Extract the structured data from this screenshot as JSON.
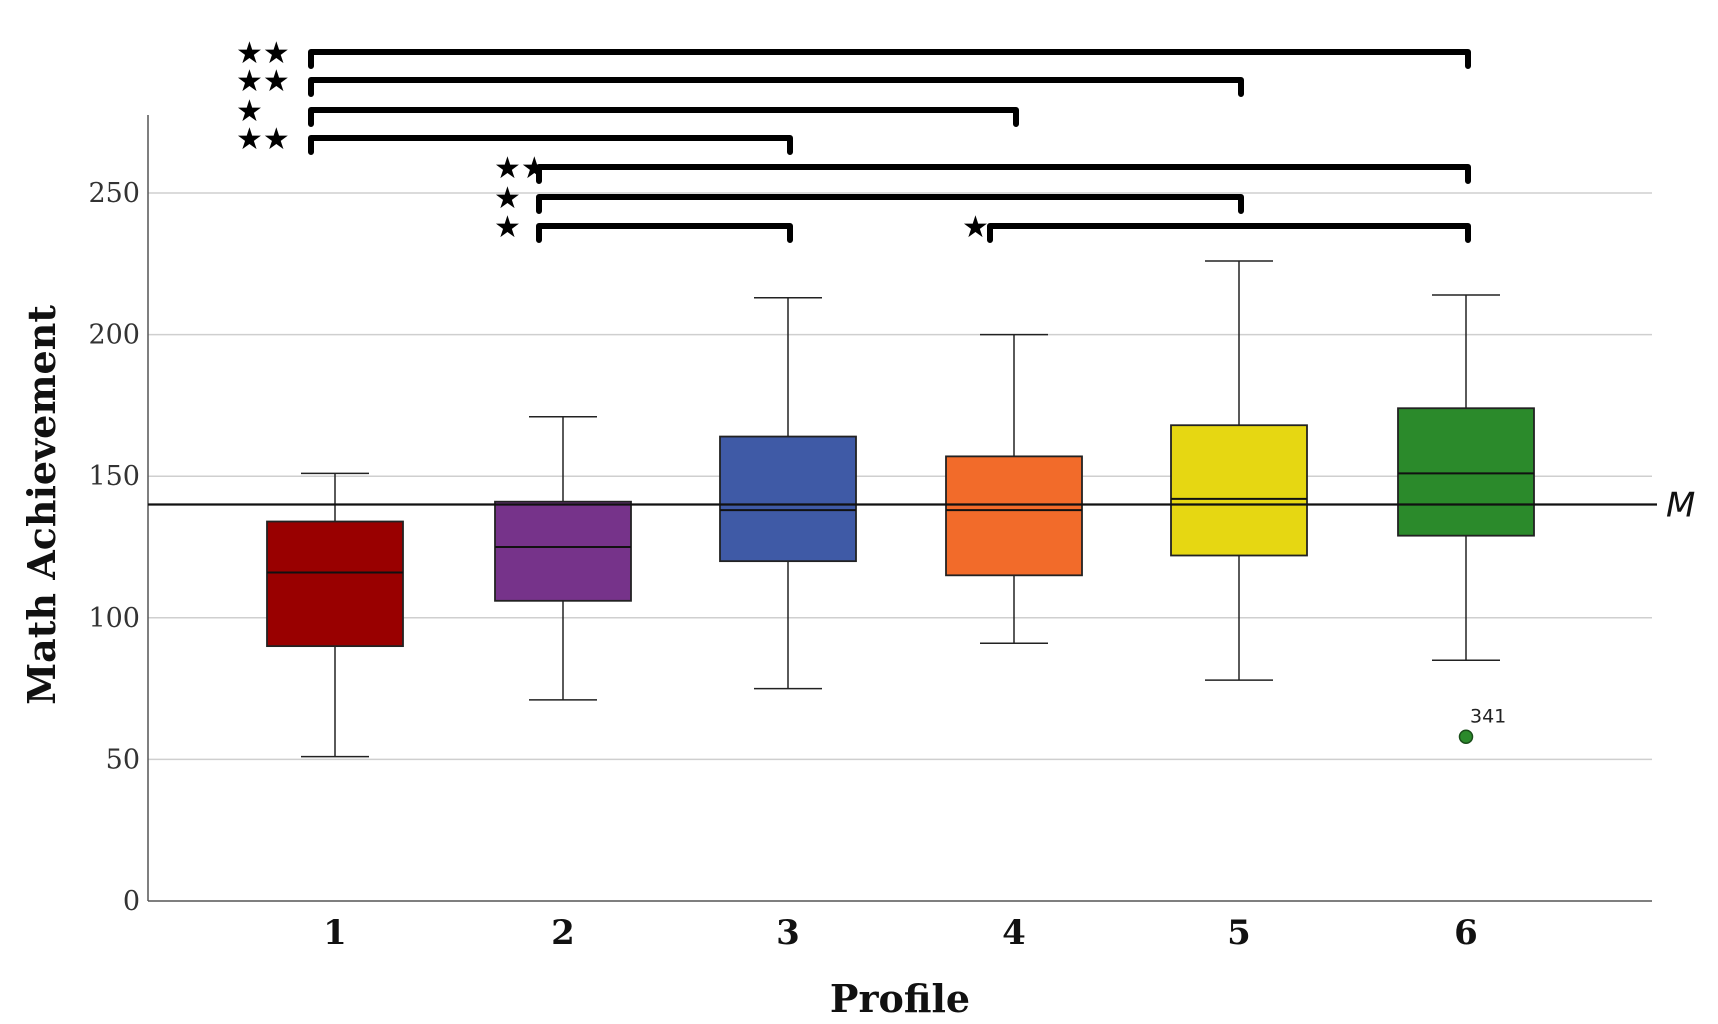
{
  "chart_data": {
    "type": "box",
    "title": "",
    "xlabel": "Profile",
    "ylabel": "Math Achievement",
    "ylim": [
      0,
      275
    ],
    "yticks": [
      0,
      50,
      100,
      150,
      200,
      250
    ],
    "ytick_labels": [
      "0",
      "50",
      "100",
      "150",
      "200",
      "250"
    ],
    "grid": true,
    "categories": [
      "1",
      "2",
      "3",
      "4",
      "5",
      "6"
    ],
    "boxes": [
      {
        "category": "1",
        "min": 51,
        "q1": 90,
        "median": 116,
        "q3": 134,
        "max": 151,
        "color": "#990000"
      },
      {
        "category": "2",
        "min": 71,
        "q1": 106,
        "median": 125,
        "q3": 141,
        "max": 171,
        "color": "#76338a"
      },
      {
        "category": "3",
        "min": 75,
        "q1": 120,
        "median": 138,
        "q3": 164,
        "max": 213,
        "color": "#3f5aa6"
      },
      {
        "category": "4",
        "min": 91,
        "q1": 115,
        "median": 138,
        "q3": 157,
        "max": 200,
        "color": "#f26b2a"
      },
      {
        "category": "5",
        "min": 78,
        "q1": 122,
        "median": 142,
        "q3": 168,
        "max": 226,
        "color": "#e6d712"
      },
      {
        "category": "6",
        "min": 85,
        "q1": 129,
        "median": 151,
        "q3": 174,
        "max": 214,
        "color": "#2b8a2b"
      }
    ],
    "outliers": [
      {
        "category": "6",
        "value": 58,
        "label": "341",
        "color": "#2b8a2b"
      }
    ],
    "reference_line": {
      "value": 140,
      "label": "M"
    },
    "significance": [
      {
        "from": "1",
        "to": "6",
        "stars": "★★"
      },
      {
        "from": "1",
        "to": "5",
        "stars": "★★"
      },
      {
        "from": "1",
        "to": "4",
        "stars": "★"
      },
      {
        "from": "1",
        "to": "3",
        "stars": "★★"
      },
      {
        "from": "2",
        "to": "6",
        "stars": "★★"
      },
      {
        "from": "2",
        "to": "5",
        "stars": "★"
      },
      {
        "from": "2",
        "to": "3",
        "stars": "★"
      },
      {
        "from": "4",
        "to": "6",
        "stars": "★"
      }
    ]
  }
}
